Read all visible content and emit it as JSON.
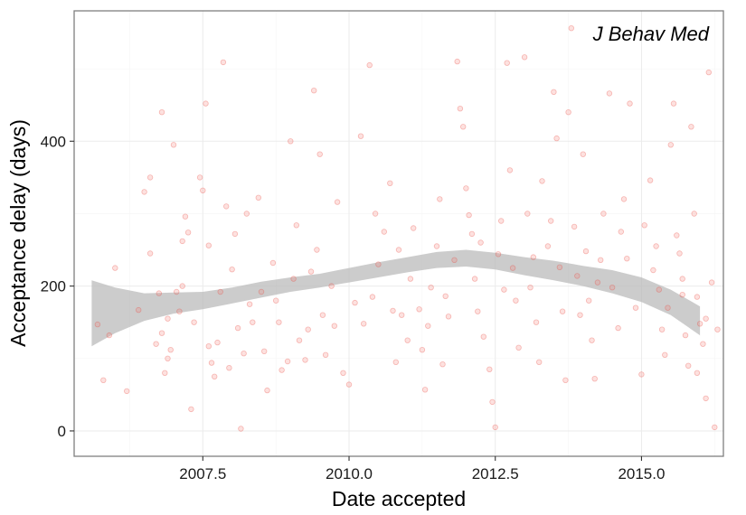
{
  "chart_data": {
    "type": "scatter",
    "annotation": "J Behav Med",
    "xlabel": "Date accepted",
    "ylabel": "Acceptance delay (days)",
    "xlim": [
      2005.3,
      2016.4
    ],
    "ylim": [
      -35,
      580
    ],
    "x_ticks": [
      2007.5,
      2010.0,
      2012.5,
      2015.0
    ],
    "x_tick_labels": [
      "2007.5",
      "2010.0",
      "2012.5",
      "2015.0"
    ],
    "y_ticks": [
      0,
      200,
      400
    ],
    "y_tick_labels": [
      "0",
      "200",
      "400"
    ],
    "grid": true,
    "colors": {
      "points": "#f8766d",
      "ribbon": "#bdbdbd",
      "panel_border": "#7f7f7f"
    },
    "smooth_band": [
      {
        "x": 2005.6,
        "lower": 117,
        "upper": 208
      },
      {
        "x": 2006.0,
        "lower": 135,
        "upper": 198
      },
      {
        "x": 2006.5,
        "lower": 152,
        "upper": 190
      },
      {
        "x": 2007.0,
        "lower": 162,
        "upper": 191
      },
      {
        "x": 2007.5,
        "lower": 168,
        "upper": 192
      },
      {
        "x": 2008.0,
        "lower": 176,
        "upper": 198
      },
      {
        "x": 2008.5,
        "lower": 184,
        "upper": 206
      },
      {
        "x": 2009.0,
        "lower": 192,
        "upper": 212
      },
      {
        "x": 2009.5,
        "lower": 198,
        "upper": 217
      },
      {
        "x": 2010.0,
        "lower": 205,
        "upper": 225
      },
      {
        "x": 2010.5,
        "lower": 212,
        "upper": 233
      },
      {
        "x": 2011.0,
        "lower": 219,
        "upper": 240
      },
      {
        "x": 2011.5,
        "lower": 225,
        "upper": 247
      },
      {
        "x": 2012.0,
        "lower": 227,
        "upper": 250
      },
      {
        "x": 2012.5,
        "lower": 223,
        "upper": 246
      },
      {
        "x": 2013.0,
        "lower": 215,
        "upper": 240
      },
      {
        "x": 2013.5,
        "lower": 208,
        "upper": 235
      },
      {
        "x": 2014.0,
        "lower": 200,
        "upper": 228
      },
      {
        "x": 2014.5,
        "lower": 190,
        "upper": 222
      },
      {
        "x": 2015.0,
        "lower": 178,
        "upper": 212
      },
      {
        "x": 2015.5,
        "lower": 160,
        "upper": 195
      },
      {
        "x": 2016.0,
        "lower": 132,
        "upper": 172
      }
    ],
    "points": [
      [
        2005.7,
        147
      ],
      [
        2005.8,
        70
      ],
      [
        2005.9,
        132
      ],
      [
        2006.0,
        225
      ],
      [
        2006.2,
        55
      ],
      [
        2006.4,
        167
      ],
      [
        2006.5,
        330
      ],
      [
        2006.6,
        350
      ],
      [
        2006.6,
        245
      ],
      [
        2006.7,
        120
      ],
      [
        2006.75,
        190
      ],
      [
        2006.8,
        440
      ],
      [
        2006.8,
        135
      ],
      [
        2006.85,
        80
      ],
      [
        2006.9,
        100
      ],
      [
        2006.95,
        112
      ],
      [
        2007.0,
        395
      ],
      [
        2007.05,
        192
      ],
      [
        2007.1,
        165
      ],
      [
        2007.15,
        262
      ],
      [
        2007.2,
        296
      ],
      [
        2007.25,
        274
      ],
      [
        2007.3,
        30
      ],
      [
        2007.35,
        150
      ],
      [
        2007.45,
        350
      ],
      [
        2007.5,
        332
      ],
      [
        2007.55,
        452
      ],
      [
        2007.6,
        117
      ],
      [
        2007.65,
        94
      ],
      [
        2007.7,
        75
      ],
      [
        2007.75,
        122
      ],
      [
        2007.8,
        192
      ],
      [
        2007.85,
        509
      ],
      [
        2007.9,
        310
      ],
      [
        2007.95,
        87
      ],
      [
        2008.0,
        223
      ],
      [
        2008.05,
        272
      ],
      [
        2008.1,
        142
      ],
      [
        2008.15,
        3
      ],
      [
        2008.2,
        107
      ],
      [
        2008.3,
        175
      ],
      [
        2008.35,
        150
      ],
      [
        2008.45,
        322
      ],
      [
        2008.5,
        192
      ],
      [
        2008.55,
        110
      ],
      [
        2008.6,
        56
      ],
      [
        2008.7,
        232
      ],
      [
        2008.8,
        150
      ],
      [
        2008.85,
        84
      ],
      [
        2008.95,
        96
      ],
      [
        2009.0,
        400
      ],
      [
        2009.05,
        210
      ],
      [
        2009.1,
        284
      ],
      [
        2009.15,
        125
      ],
      [
        2009.25,
        98
      ],
      [
        2009.3,
        140
      ],
      [
        2009.4,
        470
      ],
      [
        2009.45,
        250
      ],
      [
        2009.5,
        382
      ],
      [
        2009.55,
        160
      ],
      [
        2009.6,
        105
      ],
      [
        2009.7,
        200
      ],
      [
        2009.8,
        316
      ],
      [
        2009.9,
        80
      ],
      [
        2010.0,
        64
      ],
      [
        2010.1,
        177
      ],
      [
        2010.2,
        407
      ],
      [
        2010.25,
        148
      ],
      [
        2010.35,
        505
      ],
      [
        2010.4,
        185
      ],
      [
        2010.5,
        230
      ],
      [
        2010.6,
        275
      ],
      [
        2010.7,
        342
      ],
      [
        2010.75,
        166
      ],
      [
        2010.8,
        95
      ],
      [
        2010.9,
        160
      ],
      [
        2011.0,
        125
      ],
      [
        2011.05,
        210
      ],
      [
        2011.1,
        280
      ],
      [
        2011.2,
        168
      ],
      [
        2011.25,
        112
      ],
      [
        2011.3,
        57
      ],
      [
        2011.4,
        198
      ],
      [
        2011.5,
        255
      ],
      [
        2011.55,
        320
      ],
      [
        2011.6,
        92
      ],
      [
        2011.7,
        158
      ],
      [
        2011.8,
        236
      ],
      [
        2011.85,
        510
      ],
      [
        2011.9,
        445
      ],
      [
        2011.95,
        420
      ],
      [
        2012.0,
        335
      ],
      [
        2012.05,
        298
      ],
      [
        2012.1,
        272
      ],
      [
        2012.15,
        210
      ],
      [
        2012.2,
        165
      ],
      [
        2012.3,
        130
      ],
      [
        2012.4,
        85
      ],
      [
        2012.45,
        40
      ],
      [
        2012.5,
        5
      ],
      [
        2012.55,
        244
      ],
      [
        2012.6,
        290
      ],
      [
        2012.7,
        508
      ],
      [
        2012.75,
        360
      ],
      [
        2012.8,
        225
      ],
      [
        2012.85,
        180
      ],
      [
        2012.9,
        115
      ],
      [
        2013.0,
        516
      ],
      [
        2013.05,
        300
      ],
      [
        2013.1,
        198
      ],
      [
        2013.2,
        150
      ],
      [
        2013.25,
        95
      ],
      [
        2013.3,
        345
      ],
      [
        2013.4,
        255
      ],
      [
        2013.5,
        468
      ],
      [
        2013.55,
        404
      ],
      [
        2013.6,
        226
      ],
      [
        2013.65,
        165
      ],
      [
        2013.7,
        70
      ],
      [
        2013.75,
        440
      ],
      [
        2013.8,
        556
      ],
      [
        2013.85,
        282
      ],
      [
        2013.9,
        214
      ],
      [
        2014.0,
        382
      ],
      [
        2014.05,
        248
      ],
      [
        2014.1,
        180
      ],
      [
        2014.15,
        125
      ],
      [
        2014.2,
        72
      ],
      [
        2014.3,
        236
      ],
      [
        2014.35,
        300
      ],
      [
        2014.45,
        466
      ],
      [
        2014.5,
        198
      ],
      [
        2014.6,
        142
      ],
      [
        2014.7,
        320
      ],
      [
        2014.75,
        238
      ],
      [
        2014.8,
        452
      ],
      [
        2014.9,
        170
      ],
      [
        2015.0,
        78
      ],
      [
        2015.05,
        284
      ],
      [
        2015.15,
        346
      ],
      [
        2015.2,
        222
      ],
      [
        2015.3,
        195
      ],
      [
        2015.35,
        140
      ],
      [
        2015.4,
        105
      ],
      [
        2015.5,
        395
      ],
      [
        2015.55,
        452
      ],
      [
        2015.6,
        270
      ],
      [
        2015.65,
        245
      ],
      [
        2015.7,
        188
      ],
      [
        2015.75,
        132
      ],
      [
        2015.8,
        90
      ],
      [
        2015.85,
        420
      ],
      [
        2015.9,
        300
      ],
      [
        2015.95,
        185
      ],
      [
        2016.0,
        148
      ],
      [
        2016.05,
        120
      ],
      [
        2016.1,
        45
      ],
      [
        2016.15,
        495
      ],
      [
        2016.2,
        205
      ],
      [
        2016.25,
        5
      ],
      [
        2016.3,
        140
      ],
      [
        2006.9,
        155
      ],
      [
        2007.15,
        200
      ],
      [
        2007.6,
        256
      ],
      [
        2008.25,
        300
      ],
      [
        2008.75,
        180
      ],
      [
        2009.35,
        220
      ],
      [
        2009.75,
        145
      ],
      [
        2010.45,
        300
      ],
      [
        2010.85,
        250
      ],
      [
        2011.35,
        145
      ],
      [
        2011.65,
        186
      ],
      [
        2012.25,
        260
      ],
      [
        2012.65,
        195
      ],
      [
        2013.15,
        240
      ],
      [
        2013.45,
        290
      ],
      [
        2013.95,
        160
      ],
      [
        2014.25,
        205
      ],
      [
        2014.65,
        275
      ],
      [
        2015.25,
        255
      ],
      [
        2015.45,
        170
      ],
      [
        2015.7,
        210
      ],
      [
        2015.95,
        80
      ],
      [
        2016.1,
        155
      ]
    ]
  }
}
